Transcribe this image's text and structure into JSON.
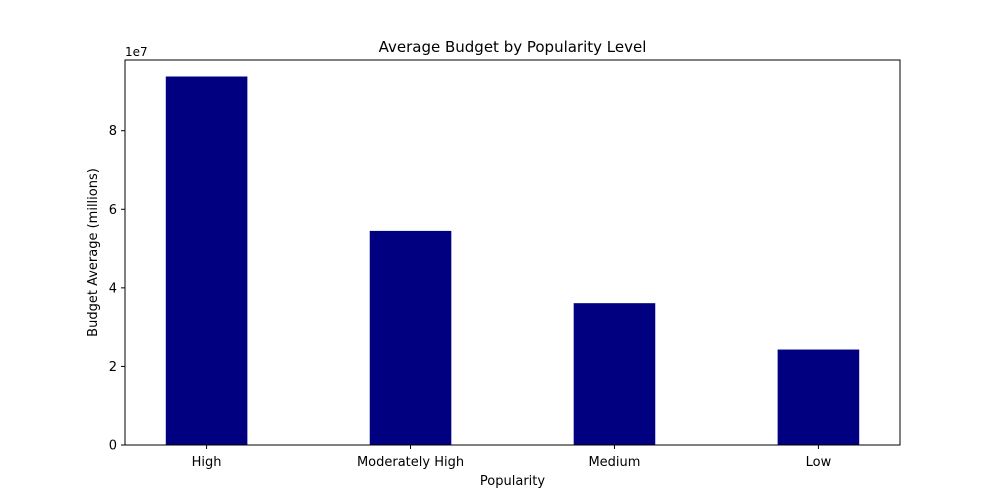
{
  "chart_data": {
    "type": "bar",
    "title": "Average Budget by Popularity Level",
    "xlabel": "Popularity",
    "ylabel": "Budget Average (millions)",
    "offset_text": "1e7",
    "categories": [
      "High",
      "Moderately High",
      "Medium",
      "Low"
    ],
    "values": [
      93800000,
      54500000,
      36100000,
      24300000
    ],
    "ylim": [
      0,
      98000000
    ],
    "yticks": [
      0,
      20000000,
      40000000,
      60000000,
      80000000
    ],
    "ytick_labels": [
      "0",
      "2",
      "4",
      "6",
      "8"
    ],
    "bar_color": "#000080",
    "grid": false,
    "legend": "none"
  }
}
